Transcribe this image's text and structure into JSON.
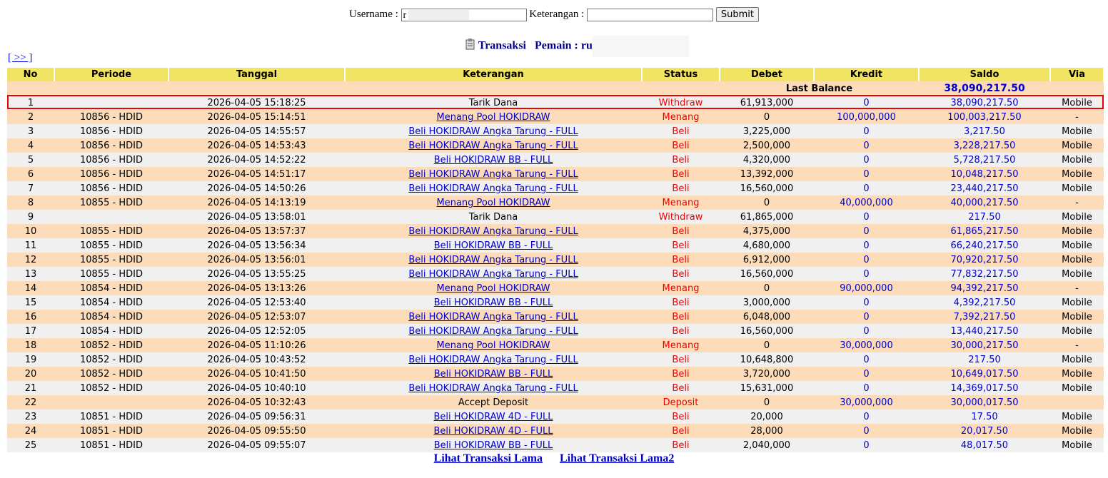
{
  "form": {
    "username_label": "Username :",
    "username_value": "r",
    "keterangan_label": "Keterangan :",
    "submit": "Submit"
  },
  "title": {
    "transaksi": "Transaksi",
    "pemain": "Pemain : ru"
  },
  "nav": {
    "next": "[ >> ]"
  },
  "table": {
    "headers": [
      "No",
      "Periode",
      "Tanggal",
      "Keterangan",
      "Status",
      "Debet",
      "Kredit",
      "Saldo",
      "Via"
    ],
    "last_balance": {
      "label": "Last Balance",
      "saldo": "38,090,217.50"
    },
    "rows": [
      {
        "no": "1",
        "tanggal": "2026-04-05 15:18:25",
        "keterangan": "Tarik Dana",
        "status": "Withdraw",
        "debet": "61,913,000",
        "kredit": "0",
        "saldo": "38,090,217.50",
        "via": "Mobile"
      },
      {
        "no": "2",
        "periode": "10856 - HDID",
        "tanggal": "2026-04-05 15:14:51",
        "keterangan": "Menang Pool HOKIDRAW",
        "status": "Menang",
        "debet": "0",
        "kredit": "100,000,000",
        "saldo": "100,003,217.50",
        "via": "-"
      },
      {
        "no": "3",
        "periode": "10856 - HDID",
        "tanggal": "2026-04-05 14:55:57",
        "keterangan": "Beli HOKIDRAW Angka Tarung - FULL",
        "status": "Beli",
        "debet": "3,225,000",
        "kredit": "0",
        "saldo": "3,217.50",
        "via": "Mobile"
      },
      {
        "no": "4",
        "periode": "10856 - HDID",
        "tanggal": "2026-04-05 14:53:43",
        "keterangan": "Beli HOKIDRAW Angka Tarung - FULL",
        "status": "Beli",
        "debet": "2,500,000",
        "kredit": "0",
        "saldo": "3,228,217.50",
        "via": "Mobile"
      },
      {
        "no": "5",
        "periode": "10856 - HDID",
        "tanggal": "2026-04-05 14:52:22",
        "keterangan": "Beli HOKIDRAW BB - FULL",
        "status": "Beli",
        "debet": "4,320,000",
        "kredit": "0",
        "saldo": "5,728,217.50",
        "via": "Mobile"
      },
      {
        "no": "6",
        "periode": "10856 - HDID",
        "tanggal": "2026-04-05 14:51:17",
        "keterangan": "Beli HOKIDRAW Angka Tarung - FULL",
        "status": "Beli",
        "debet": "13,392,000",
        "kredit": "0",
        "saldo": "10,048,217.50",
        "via": "Mobile"
      },
      {
        "no": "7",
        "periode": "10856 - HDID",
        "tanggal": "2026-04-05 14:50:26",
        "keterangan": "Beli HOKIDRAW Angka Tarung - FULL",
        "status": "Beli",
        "debet": "16,560,000",
        "kredit": "0",
        "saldo": "23,440,217.50",
        "via": "Mobile"
      },
      {
        "no": "8",
        "periode": "10855 - HDID",
        "tanggal": "2026-04-05 14:13:19",
        "keterangan": "Menang Pool HOKIDRAW",
        "status": "Menang",
        "debet": "0",
        "kredit": "40,000,000",
        "saldo": "40,000,217.50",
        "via": "-"
      },
      {
        "no": "9",
        "tanggal": "2026-04-05 13:58:01",
        "keterangan": "Tarik Dana",
        "status": "Withdraw",
        "debet": "61,865,000",
        "kredit": "0",
        "saldo": "217.50",
        "via": "Mobile"
      },
      {
        "no": "10",
        "periode": "10855 - HDID",
        "tanggal": "2026-04-05 13:57:37",
        "keterangan": "Beli HOKIDRAW Angka Tarung - FULL",
        "status": "Beli",
        "debet": "4,375,000",
        "kredit": "0",
        "saldo": "61,865,217.50",
        "via": "Mobile"
      },
      {
        "no": "11",
        "periode": "10855 - HDID",
        "tanggal": "2026-04-05 13:56:34",
        "keterangan": "Beli HOKIDRAW BB - FULL",
        "status": "Beli",
        "debet": "4,680,000",
        "kredit": "0",
        "saldo": "66,240,217.50",
        "via": "Mobile"
      },
      {
        "no": "12",
        "periode": "10855 - HDID",
        "tanggal": "2026-04-05 13:56:01",
        "keterangan": "Beli HOKIDRAW Angka Tarung - FULL",
        "status": "Beli",
        "debet": "6,912,000",
        "kredit": "0",
        "saldo": "70,920,217.50",
        "via": "Mobile"
      },
      {
        "no": "13",
        "periode": "10855 - HDID",
        "tanggal": "2026-04-05 13:55:25",
        "keterangan": "Beli HOKIDRAW Angka Tarung - FULL",
        "status": "Beli",
        "debet": "16,560,000",
        "kredit": "0",
        "saldo": "77,832,217.50",
        "via": "Mobile"
      },
      {
        "no": "14",
        "periode": "10854 - HDID",
        "tanggal": "2026-04-05 13:13:26",
        "keterangan": "Menang Pool HOKIDRAW",
        "status": "Menang",
        "debet": "0",
        "kredit": "90,000,000",
        "saldo": "94,392,217.50",
        "via": "-"
      },
      {
        "no": "15",
        "periode": "10854 - HDID",
        "tanggal": "2026-04-05 12:53:40",
        "keterangan": "Beli HOKIDRAW BB - FULL",
        "status": "Beli",
        "debet": "3,000,000",
        "kredit": "0",
        "saldo": "4,392,217.50",
        "via": "Mobile"
      },
      {
        "no": "16",
        "periode": "10854 - HDID",
        "tanggal": "2026-04-05 12:53:07",
        "keterangan": "Beli HOKIDRAW Angka Tarung - FULL",
        "status": "Beli",
        "debet": "6,048,000",
        "kredit": "0",
        "saldo": "7,392,217.50",
        "via": "Mobile"
      },
      {
        "no": "17",
        "periode": "10854 - HDID",
        "tanggal": "2026-04-05 12:52:05",
        "keterangan": "Beli HOKIDRAW Angka Tarung - FULL",
        "status": "Beli",
        "debet": "16,560,000",
        "kredit": "0",
        "saldo": "13,440,217.50",
        "via": "Mobile"
      },
      {
        "no": "18",
        "periode": "10852 - HDID",
        "tanggal": "2026-04-05 11:10:26",
        "keterangan": "Menang Pool HOKIDRAW",
        "status": "Menang",
        "debet": "0",
        "kredit": "30,000,000",
        "saldo": "30,000,217.50",
        "via": "-"
      },
      {
        "no": "19",
        "periode": "10852 - HDID",
        "tanggal": "2026-04-05 10:43:52",
        "keterangan": "Beli HOKIDRAW Angka Tarung - FULL",
        "status": "Beli",
        "debet": "10,648,800",
        "kredit": "0",
        "saldo": "217.50",
        "via": "Mobile"
      },
      {
        "no": "20",
        "periode": "10852 - HDID",
        "tanggal": "2026-04-05 10:41:50",
        "keterangan": "Beli HOKIDRAW BB - FULL",
        "status": "Beli",
        "debet": "3,720,000",
        "kredit": "0",
        "saldo": "10,649,017.50",
        "via": "Mobile"
      },
      {
        "no": "21",
        "periode": "10852 - HDID",
        "tanggal": "2026-04-05 10:40:10",
        "keterangan": "Beli HOKIDRAW Angka Tarung - FULL",
        "status": "Beli",
        "debet": "15,631,000",
        "kredit": "0",
        "saldo": "14,369,017.50",
        "via": "Mobile"
      },
      {
        "no": "22",
        "tanggal": "2026-04-05 10:32:43",
        "keterangan": "Accept Deposit",
        "status": "Deposit",
        "debet": "0",
        "kredit": "30,000,000",
        "saldo": "30,000,017.50"
      },
      {
        "no": "23",
        "periode": "10851 - HDID",
        "tanggal": "2026-04-05 09:56:31",
        "keterangan": "Beli HOKIDRAW 4D - FULL",
        "status": "Beli",
        "debet": "20,000",
        "kredit": "0",
        "saldo": "17.50",
        "via": "Mobile"
      },
      {
        "no": "24",
        "periode": "10851 - HDID",
        "tanggal": "2026-04-05 09:55:50",
        "keterangan": "Beli HOKIDRAW 4D - FULL",
        "status": "Beli",
        "debet": "28,000",
        "kredit": "0",
        "saldo": "20,017.50",
        "via": "Mobile"
      },
      {
        "no": "25",
        "periode": "10851 - HDID",
        "tanggal": "2026-04-05 09:55:07",
        "keterangan": "Beli HOKIDRAW BB - FULL",
        "status": "Beli",
        "debet": "2,040,000",
        "kredit": "0",
        "saldo": "48,017.50",
        "via": "Mobile"
      }
    ]
  },
  "footer": {
    "links": [
      "Lihat Transaksi Lama",
      "Lihat Transaksi Lama2"
    ]
  }
}
